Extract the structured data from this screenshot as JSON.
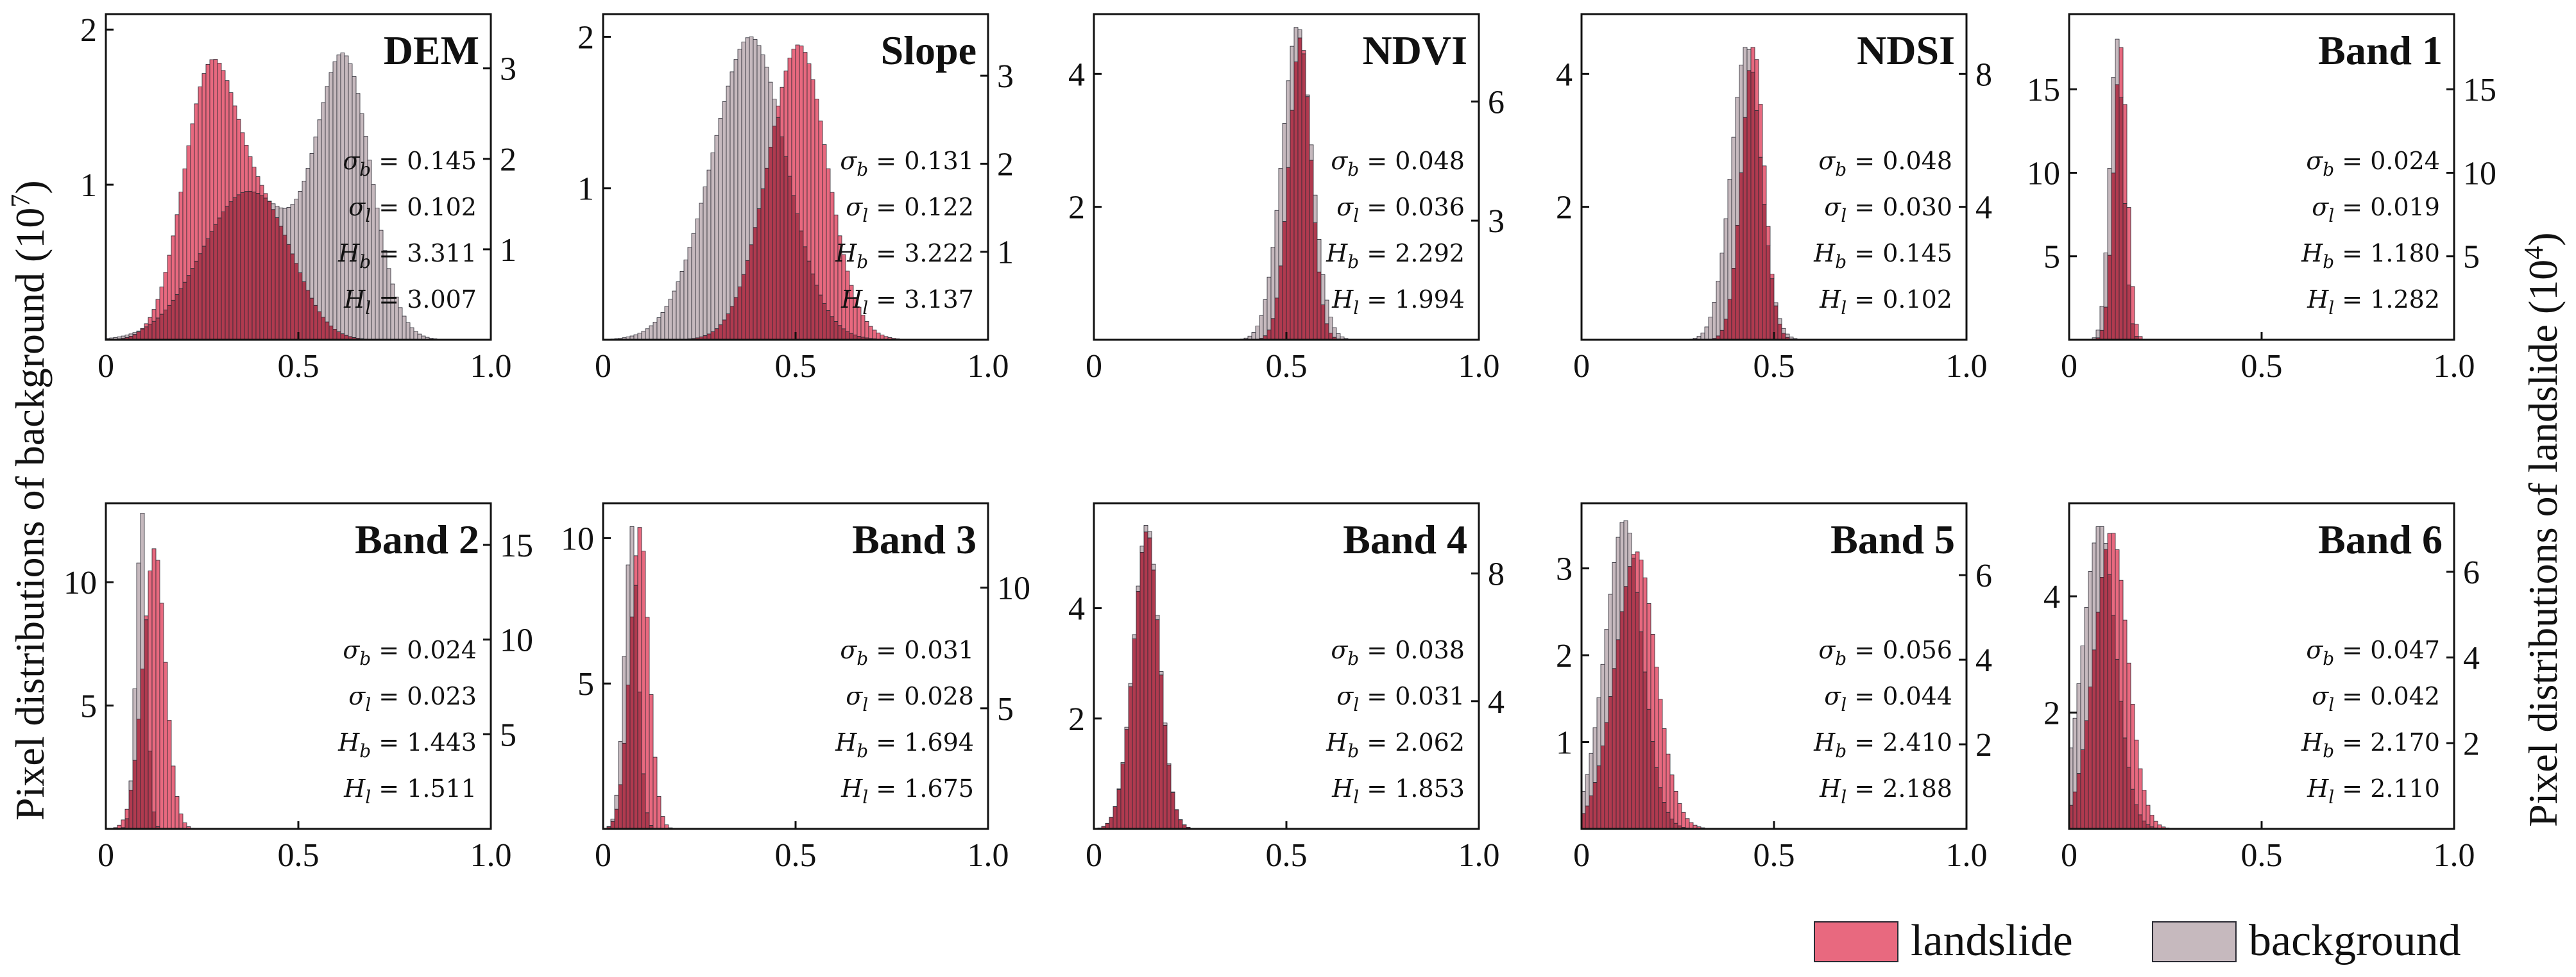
{
  "figure": {
    "ylabel_left": "Pixel distributions of background (10",
    "ylabel_left_exp": "7",
    "ylabel_left_close": ")",
    "ylabel_right": "Pixel distributions  of landslide (10",
    "ylabel_right_exp": "4",
    "ylabel_right_close": ")",
    "legend": [
      {
        "label": "landslide",
        "color": "#e8697f"
      },
      {
        "label": "background",
        "color": "#c6b9be"
      }
    ],
    "colors": {
      "landslide": "#e8697f",
      "background": "#c6b9be",
      "overlap": "#b03a4f",
      "edge": "#2a2a33"
    }
  },
  "chart_data": [
    {
      "type": "histogram",
      "title": "DEM",
      "x_ticks": [
        "0",
        "0.5",
        "1.0"
      ],
      "xlim": [
        0,
        1
      ],
      "left_ticks": [
        "1",
        "2"
      ],
      "left_lim": [
        0,
        2.1
      ],
      "right_ticks": [
        "1",
        "2",
        "3"
      ],
      "right_lim": [
        0,
        3.6
      ],
      "background": {
        "mean": 0.6,
        "sd": 0.08,
        "peak": 1.85,
        "shape": "dem_bg"
      },
      "landslide": {
        "mean": 0.27,
        "sd": 0.07,
        "peak": 3.1,
        "shape": "dem_ls"
      },
      "stats": {
        "sigma_b": "0.145",
        "sigma_l": "0.102",
        "H_b": "3.311",
        "H_l": "3.007"
      }
    },
    {
      "type": "histogram",
      "title": "Slope",
      "x_ticks": [
        "0",
        "0.5",
        "1.0"
      ],
      "xlim": [
        0,
        1
      ],
      "left_ticks": [
        "1",
        "2"
      ],
      "left_lim": [
        0,
        2.15
      ],
      "right_ticks": [
        "1",
        "2",
        "3"
      ],
      "right_lim": [
        0,
        3.7
      ],
      "background": {
        "mean": 0.36,
        "sd": 0.1,
        "peak": 2.0
      },
      "landslide": {
        "mean": 0.49,
        "sd": 0.08,
        "peak": 3.35
      },
      "stats": {
        "sigma_b": "0.131",
        "sigma_l": "0.122",
        "H_b": "3.222",
        "H_l": "3.137"
      }
    },
    {
      "type": "histogram",
      "title": "NDVI",
      "x_ticks": [
        "0",
        "0.5",
        "1.0"
      ],
      "xlim": [
        0,
        1
      ],
      "left_ticks": [
        "2",
        "4"
      ],
      "left_lim": [
        0,
        4.9
      ],
      "right_ticks": [
        "3",
        "6"
      ],
      "right_lim": [
        0,
        8.2
      ],
      "background": {
        "mean": 0.52,
        "sd": 0.04,
        "peak": 4.7
      },
      "landslide": {
        "mean": 0.53,
        "sd": 0.03,
        "peak": 7.6
      },
      "stats": {
        "sigma_b": "0.048",
        "sigma_l": "0.036",
        "H_b": "2.292",
        "H_l": "1.994"
      }
    },
    {
      "type": "histogram",
      "title": "NDSI",
      "x_ticks": [
        "0",
        "0.5",
        "1.0"
      ],
      "xlim": [
        0,
        1
      ],
      "left_ticks": [
        "2",
        "4"
      ],
      "left_lim": [
        0,
        4.9
      ],
      "right_ticks": [
        "4",
        "8"
      ],
      "right_lim": [
        0,
        9.8
      ],
      "background": {
        "mean": 0.42,
        "sd": 0.04,
        "peak": 4.4
      },
      "landslide": {
        "mean": 0.44,
        "sd": 0.03,
        "peak": 8.8
      },
      "stats": {
        "sigma_b": "0.048",
        "sigma_l": "0.030",
        "H_b": "0.145",
        "H_l": "0.102"
      }
    },
    {
      "type": "histogram",
      "title": "Band 1",
      "x_ticks": [
        "0",
        "0.5",
        "1.0"
      ],
      "xlim": [
        0,
        1
      ],
      "left_ticks": [
        "5",
        "10",
        "15"
      ],
      "left_lim": [
        0,
        19.5
      ],
      "right_ticks": [
        "5",
        "10",
        "15"
      ],
      "right_lim": [
        0,
        19.5
      ],
      "background": {
        "mean": 0.12,
        "sd": 0.018,
        "peak": 18
      },
      "landslide": {
        "mean": 0.13,
        "sd": 0.018,
        "peak": 17.5
      },
      "stats": {
        "sigma_b": "0.024",
        "sigma_l": "0.019",
        "H_b": "1.180",
        "H_l": "1.282"
      }
    },
    {
      "type": "histogram",
      "title": "Band 2",
      "x_ticks": [
        "0",
        "0.5",
        "1.0"
      ],
      "xlim": [
        0,
        1
      ],
      "left_ticks": [
        "5",
        "10"
      ],
      "left_lim": [
        0,
        13.2
      ],
      "right_ticks": [
        "5",
        "10",
        "15"
      ],
      "right_lim": [
        0,
        17.2
      ],
      "background": {
        "mean": 0.09,
        "sd": 0.014,
        "peak": 12.8
      },
      "landslide": {
        "mean": 0.12,
        "sd": 0.03,
        "peak": 14.8
      },
      "stats": {
        "sigma_b": "0.024",
        "sigma_l": "0.023",
        "H_b": "1.443",
        "H_l": "1.511"
      }
    },
    {
      "type": "histogram",
      "title": "Band 3",
      "x_ticks": [
        "0",
        "0.5",
        "1.0"
      ],
      "xlim": [
        0,
        1
      ],
      "left_ticks": [
        "5",
        "10"
      ],
      "left_lim": [
        0,
        11.2
      ],
      "right_ticks": [
        "5",
        "10"
      ],
      "right_lim": [
        0,
        13.5
      ],
      "background": {
        "mean": 0.07,
        "sd": 0.018,
        "peak": 10.4
      },
      "landslide": {
        "mean": 0.09,
        "sd": 0.025,
        "peak": 12.5
      },
      "stats": {
        "sigma_b": "0.031",
        "sigma_l": "0.028",
        "H_b": "1.694",
        "H_l": "1.675"
      }
    },
    {
      "type": "histogram",
      "title": "Band 4",
      "x_ticks": [
        "0",
        "0.5",
        "1.0"
      ],
      "xlim": [
        0,
        1
      ],
      "left_ticks": [
        "2",
        "4"
      ],
      "left_lim": [
        0,
        5.9
      ],
      "right_ticks": [
        "4",
        "8"
      ],
      "right_lim": [
        0,
        10.2
      ],
      "background": {
        "mean": 0.13,
        "sd": 0.035,
        "peak": 5.5
      },
      "landslide": {
        "mean": 0.13,
        "sd": 0.035,
        "peak": 9.3
      },
      "stats": {
        "sigma_b": "0.038",
        "sigma_l": "0.031",
        "H_b": "2.062",
        "H_l": "1.853"
      }
    },
    {
      "type": "histogram",
      "title": "Band 5",
      "x_ticks": [
        "0",
        "0.5",
        "1.0"
      ],
      "xlim": [
        0,
        1
      ],
      "left_ticks": [
        "1",
        "2",
        "3"
      ],
      "left_lim": [
        0,
        3.75
      ],
      "right_ticks": [
        "2",
        "4",
        "6"
      ],
      "right_lim": [
        0,
        7.7
      ],
      "background": {
        "mean": 0.1,
        "sd": 0.05,
        "peak": 3.55
      },
      "landslide": {
        "mean": 0.13,
        "sd": 0.055,
        "peak": 6.55
      },
      "stats": {
        "sigma_b": "0.056",
        "sigma_l": "0.044",
        "H_b": "2.410",
        "H_l": "2.188"
      }
    },
    {
      "type": "histogram",
      "title": "Band 6",
      "x_ticks": [
        "0",
        "0.5",
        "1.0"
      ],
      "xlim": [
        0,
        1
      ],
      "left_ticks": [
        "2",
        "4"
      ],
      "left_lim": [
        0,
        5.6
      ],
      "right_ticks": [
        "2",
        "4",
        "6"
      ],
      "right_lim": [
        0,
        7.6
      ],
      "background": {
        "mean": 0.07,
        "sd": 0.045,
        "peak": 5.2
      },
      "landslide": {
        "mean": 0.1,
        "sd": 0.045,
        "peak": 6.9
      },
      "stats": {
        "sigma_b": "0.047",
        "sigma_l": "0.042",
        "H_b": "2.170",
        "H_l": "2.110"
      }
    }
  ]
}
